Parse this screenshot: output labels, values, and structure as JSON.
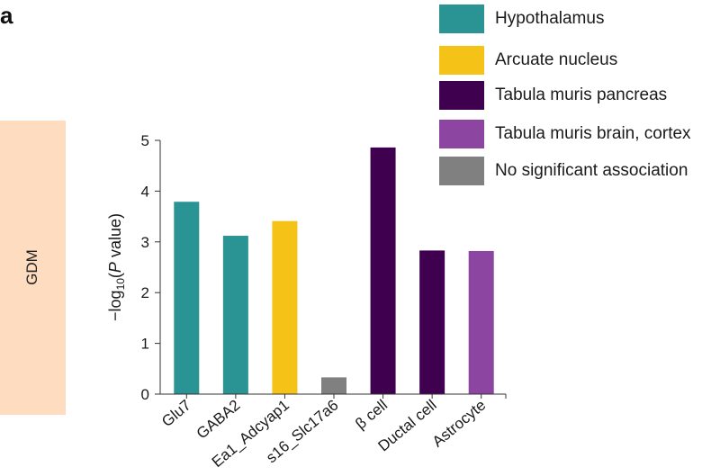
{
  "panel_letter": "a",
  "row_label": "GDM",
  "colors": {
    "hypothalamus": "#2a9393",
    "arcuate": "#f5c218",
    "pancreas": "#3f0050",
    "cortex": "#8c45a0",
    "none": "#808080"
  },
  "legend": [
    {
      "label": "Hypothalamus",
      "color": "#2a9393"
    },
    {
      "label": "Arcuate nucleus",
      "color": "#f5c218"
    },
    {
      "label": "Tabula muris pancreas",
      "color": "#3f0050"
    },
    {
      "label": "Tabula muris brain, cortex",
      "color": "#8c45a0"
    },
    {
      "label": "No significant association",
      "color": "#808080"
    }
  ],
  "chart_data": {
    "type": "bar",
    "categories": [
      "Glu7",
      "GABA2",
      "Ea1_Adcyap1",
      "s16_Slc17a6",
      "β cell",
      "Ductal cell",
      "Astrocyte"
    ],
    "values": [
      3.79,
      3.12,
      3.41,
      0.33,
      4.86,
      2.83,
      2.82
    ],
    "bar_colors": [
      "#2a9393",
      "#2a9393",
      "#f5c218",
      "#808080",
      "#3f0050",
      "#3f0050",
      "#8c45a0"
    ],
    "ylabel": "−log10(P value)",
    "ylim": [
      0,
      5
    ],
    "yticks": [
      0,
      1,
      2,
      3,
      4,
      5
    ],
    "grid": false,
    "legend_position": "top-right"
  }
}
